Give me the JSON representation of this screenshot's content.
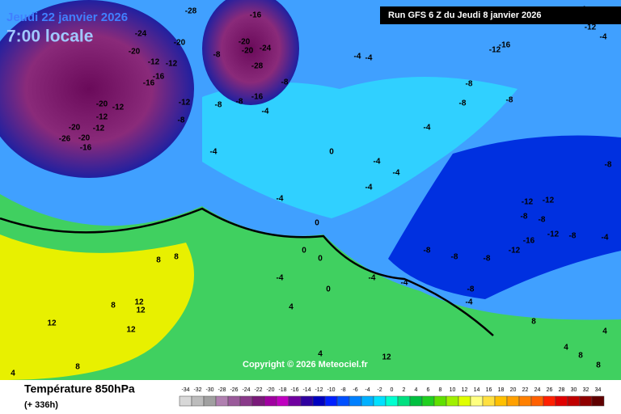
{
  "header": {
    "date": "Jeudi 22 janvier 2026",
    "time": "7:00 locale",
    "run": "Run GFS 6 Z du Jeudi 8 janvier 2026"
  },
  "copyright": "Copyright © 2026 Meteociel.fr",
  "footer": {
    "title": "Température 850hPa",
    "lead": "(+ 336h)"
  },
  "colorbar": {
    "values": [
      -34,
      -32,
      -30,
      -28,
      -26,
      -24,
      -22,
      -20,
      -18,
      -16,
      -14,
      -12,
      -10,
      -8,
      -6,
      -4,
      -2,
      0,
      2,
      4,
      6,
      8,
      10,
      12,
      14,
      16,
      18,
      20,
      22,
      24,
      26,
      28,
      30,
      32,
      34
    ],
    "colors": [
      "#d8d8d8",
      "#bcbcbc",
      "#a0a0a0",
      "#b080b0",
      "#9a5a9a",
      "#8a3a8a",
      "#7a1a7a",
      "#a000a0",
      "#c000c0",
      "#7000a0",
      "#3000a0",
      "#0000c0",
      "#0020ff",
      "#0050ff",
      "#0080ff",
      "#00b0ff",
      "#00e0ff",
      "#00ffd0",
      "#00e080",
      "#00c040",
      "#20d020",
      "#60e000",
      "#a0f000",
      "#e0ff00",
      "#ffff80",
      "#ffe040",
      "#ffc000",
      "#ffa000",
      "#ff8000",
      "#ff6000",
      "#ff2000",
      "#e00000",
      "#c00000",
      "#900000",
      "#600000"
    ]
  },
  "contour_labels": [
    -28,
    -24,
    -20,
    -20,
    -12,
    -12,
    -16,
    -16,
    -8,
    -20,
    -12,
    -12,
    -8,
    -20,
    -12,
    -26,
    -20,
    -16,
    -12,
    -8,
    -8,
    -16,
    -20,
    -24,
    -20,
    -28,
    -16,
    -4,
    -8,
    -4,
    -4,
    -8,
    -12,
    -16,
    -4,
    -12,
    -4,
    -8,
    -8,
    -4,
    -4,
    0,
    -4,
    -4,
    -4,
    -4,
    -12,
    -12,
    -8,
    -8,
    -12,
    -16,
    -12,
    -8,
    -4,
    -8,
    -8,
    -8,
    -8,
    -4,
    -8,
    -4,
    0,
    0,
    0,
    0,
    -4,
    -4,
    4,
    8,
    8,
    12,
    12,
    8,
    12,
    12,
    8,
    4,
    12,
    8,
    4,
    8,
    8,
    4,
    4
  ]
}
